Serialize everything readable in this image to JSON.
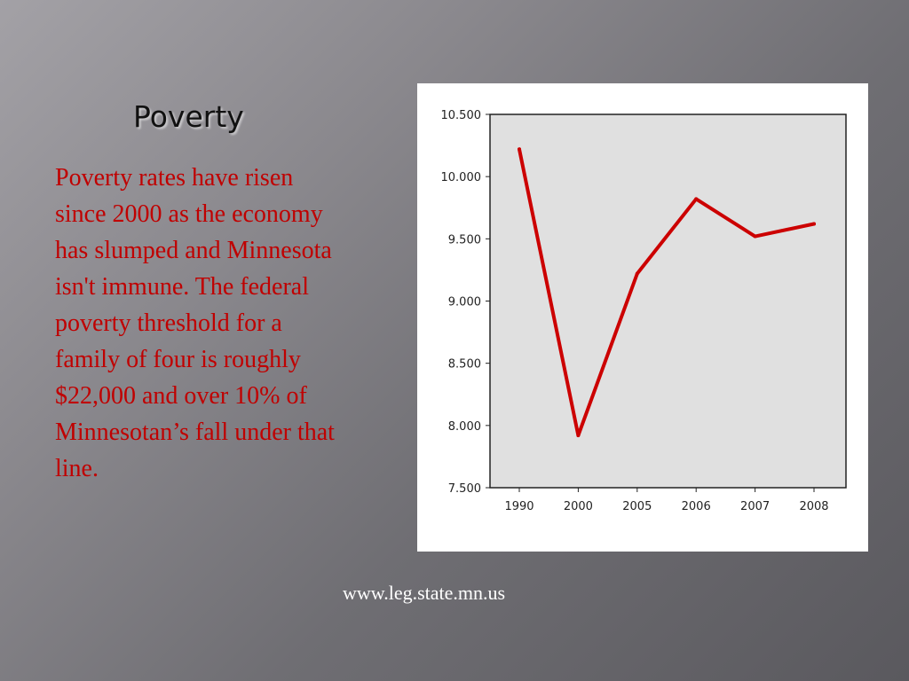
{
  "slide": {
    "title": "Poverty",
    "body": "Poverty rates have risen since 2000 as the economy has slumped and Minnesota isn't immune. The federal poverty threshold for a family of four is roughly $22,000 and over 10% of Minnesotan’s fall under that line.",
    "source": "www.leg.state.mn.us"
  },
  "colors": {
    "body_text": "#c00000",
    "line": "#cc0000",
    "plot_bg": "#e0e0e0"
  },
  "chart_data": {
    "type": "line",
    "categories": [
      "1990",
      "2000",
      "2005",
      "2006",
      "2007",
      "2008"
    ],
    "values": [
      10.22,
      7.92,
      9.22,
      9.82,
      9.52,
      9.62
    ],
    "y_tick_labels": [
      "10.500",
      "10.000",
      "9.500",
      "9.000",
      "8.500",
      "8.000",
      "7.500"
    ],
    "y_ticks": [
      10.5,
      10.0,
      9.5,
      9.0,
      8.5,
      8.0,
      7.5
    ],
    "ylim": [
      7.5,
      10.5
    ],
    "title": "",
    "xlabel": "",
    "ylabel": "",
    "grid": false,
    "legend": "none"
  }
}
